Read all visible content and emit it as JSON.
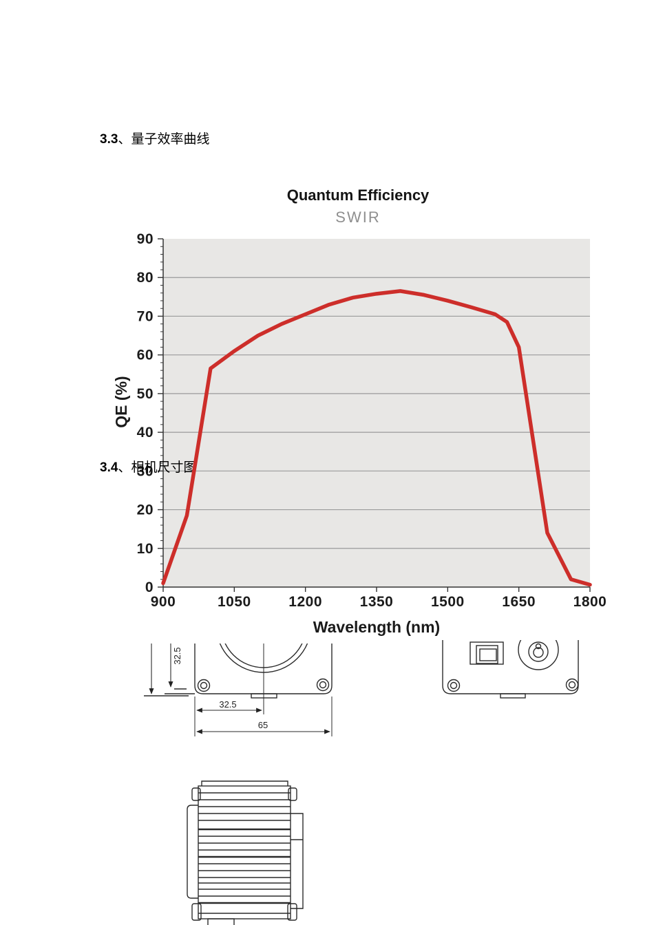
{
  "document": {
    "sections": [
      {
        "number": "3.3",
        "separator": "、",
        "title": "量子效率曲线"
      },
      {
        "number": "3.4",
        "separator": "、",
        "title": "相机尺寸图"
      }
    ]
  },
  "chart_data": {
    "type": "line",
    "title": "Quantum Efficiency",
    "subtitle": "SWIR",
    "xlabel": "Wavelength (nm)",
    "ylabel": "QE (%)",
    "xlim": [
      900,
      1800
    ],
    "ylim": [
      0,
      90
    ],
    "x_ticks": [
      900,
      1050,
      1200,
      1350,
      1500,
      1650,
      1800
    ],
    "y_ticks": [
      0,
      10,
      20,
      30,
      40,
      50,
      60,
      70,
      80,
      90
    ],
    "y_minor_step": 2,
    "grid": "horizontal-major",
    "legend": "none",
    "plot_bg_color": "#e8e7e5",
    "grid_color": "#9a9a9a",
    "axis_color": "#333333",
    "line_color": "#cd2e2a",
    "series": [
      {
        "name": "SWIR QE",
        "points": [
          [
            900,
            1
          ],
          [
            950,
            18.5
          ],
          [
            1000,
            56.5
          ],
          [
            1050,
            61
          ],
          [
            1100,
            65
          ],
          [
            1150,
            68
          ],
          [
            1200,
            70.5
          ],
          [
            1250,
            73
          ],
          [
            1300,
            74.8
          ],
          [
            1350,
            75.8
          ],
          [
            1400,
            76.5
          ],
          [
            1450,
            75.5
          ],
          [
            1500,
            74
          ],
          [
            1550,
            72.3
          ],
          [
            1600,
            70.5
          ],
          [
            1625,
            68.5
          ],
          [
            1650,
            62
          ],
          [
            1710,
            14
          ],
          [
            1760,
            2
          ],
          [
            1800,
            0.6
          ]
        ]
      }
    ]
  },
  "drawings": {
    "front_view": {
      "dim_center_offset": "32.5",
      "dim_half_width": "32.5",
      "dim_overall_width": "65"
    }
  }
}
